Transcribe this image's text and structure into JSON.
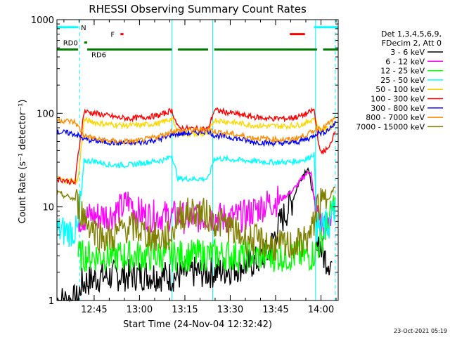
{
  "chart_data": {
    "type": "line",
    "title": "RHESSI Observing Summary Count Rates",
    "xlabel": "Start Time (24-Nov-04 12:32:42)",
    "ylabel": "Count Rate (s⁻¹ detector⁻¹)",
    "yscale": "log",
    "ylim": [
      1,
      1000
    ],
    "xlim_minutes": [
      0,
      93
    ],
    "x_ticks": [
      {
        "label": "12:45",
        "min": 12.3
      },
      {
        "label": "13:00",
        "min": 27.3
      },
      {
        "label": "13:15",
        "min": 42.3
      },
      {
        "label": "13:30",
        "min": 57.3
      },
      {
        "label": "13:45",
        "min": 72.3
      },
      {
        "label": "14:00",
        "min": 87.3
      }
    ],
    "y_ticks": [
      {
        "label": "1",
        "value": 1
      },
      {
        "label": "10",
        "value": 10
      },
      {
        "label": "100",
        "value": 100
      },
      {
        "label": "1000",
        "value": 1000
      }
    ],
    "legend_header": [
      "Det 1,3,4,5,6,9,",
      "FDecim 2, Att 0"
    ],
    "legend_position": "top-right outside",
    "series": [
      {
        "name": "3 - 6 keV",
        "color": "#000000",
        "points": [
          [
            0,
            1
          ],
          [
            7,
            1
          ],
          [
            8,
            1.5
          ],
          [
            14,
            1.8
          ],
          [
            30,
            1.9
          ],
          [
            38,
            1.8
          ],
          [
            45,
            2
          ],
          [
            52,
            2
          ],
          [
            60,
            2.3
          ],
          [
            66,
            2.6
          ],
          [
            70,
            3.2
          ],
          [
            72,
            5
          ],
          [
            74,
            7
          ],
          [
            76,
            9
          ],
          [
            78,
            12
          ],
          [
            80,
            18
          ],
          [
            82,
            24
          ],
          [
            83,
            26
          ],
          [
            84,
            18
          ],
          [
            85,
            12
          ],
          [
            86,
            5
          ],
          [
            88,
            3
          ],
          [
            91,
            2.5
          ]
        ]
      },
      {
        "name": "6 - 12 keV",
        "color": "#ff00ff",
        "points": [
          [
            7,
            7.5
          ],
          [
            12,
            8
          ],
          [
            18,
            8.3
          ],
          [
            22,
            10
          ],
          [
            24,
            12
          ],
          [
            26,
            9
          ],
          [
            30,
            8
          ],
          [
            38,
            8
          ],
          [
            44,
            7.5
          ],
          [
            50,
            8
          ],
          [
            56,
            7.5
          ],
          [
            62,
            8
          ],
          [
            66,
            9.5
          ],
          [
            70,
            11
          ],
          [
            74,
            12
          ],
          [
            78,
            15
          ],
          [
            80,
            18
          ],
          [
            82,
            22
          ],
          [
            84,
            24
          ],
          [
            85,
            12
          ],
          [
            87,
            6.5
          ],
          [
            89,
            6
          ],
          [
            91,
            9
          ]
        ]
      },
      {
        "name": "12 - 25 keV",
        "color": "#00ff00",
        "points": [
          [
            7,
            3
          ],
          [
            12,
            3
          ],
          [
            20,
            3
          ],
          [
            30,
            3
          ],
          [
            42,
            3
          ],
          [
            52,
            3.1
          ],
          [
            60,
            3
          ],
          [
            70,
            3
          ],
          [
            80,
            3
          ],
          [
            84,
            3
          ],
          [
            86,
            3.5
          ],
          [
            88,
            5
          ],
          [
            90,
            7
          ],
          [
            92,
            12
          ]
        ]
      },
      {
        "name": "25 - 50 keV",
        "color": "#00ffff",
        "points": [
          [
            0,
            5.5
          ],
          [
            7,
            5.5
          ],
          [
            9,
            31
          ],
          [
            12,
            31
          ],
          [
            18,
            28
          ],
          [
            24,
            28
          ],
          [
            30,
            30
          ],
          [
            36,
            32
          ],
          [
            38,
            36
          ],
          [
            40,
            20
          ],
          [
            46,
            20
          ],
          [
            50,
            20
          ],
          [
            52,
            33
          ],
          [
            58,
            32
          ],
          [
            64,
            31
          ],
          [
            70,
            30
          ],
          [
            76,
            30
          ],
          [
            80,
            31
          ],
          [
            83,
            33
          ],
          [
            85,
            37
          ],
          [
            86,
            6
          ],
          [
            88,
            6
          ],
          [
            90,
            6.5
          ],
          [
            92,
            10
          ]
        ]
      },
      {
        "name": "50 - 100 keV",
        "color": "#ffd700",
        "points": [
          [
            0,
            20
          ],
          [
            3,
            19
          ],
          [
            6,
            19
          ],
          [
            7,
            20
          ],
          [
            9,
            85
          ],
          [
            14,
            78
          ],
          [
            20,
            75
          ],
          [
            24,
            74
          ],
          [
            28,
            75
          ],
          [
            34,
            78
          ],
          [
            38,
            88
          ],
          [
            40,
            60
          ],
          [
            46,
            60
          ],
          [
            50,
            60
          ],
          [
            52,
            85
          ],
          [
            58,
            80
          ],
          [
            64,
            75
          ],
          [
            70,
            73
          ],
          [
            76,
            73
          ],
          [
            80,
            75
          ],
          [
            83,
            80
          ],
          [
            85,
            90
          ],
          [
            87,
            65
          ],
          [
            90,
            70
          ],
          [
            92,
            78
          ]
        ]
      },
      {
        "name": "100 - 300 keV",
        "color": "#ff0000",
        "points": [
          [
            0,
            20
          ],
          [
            3,
            19
          ],
          [
            6,
            18
          ],
          [
            7,
            36
          ],
          [
            9,
            105
          ],
          [
            14,
            98
          ],
          [
            20,
            90
          ],
          [
            24,
            88
          ],
          [
            28,
            90
          ],
          [
            34,
            95
          ],
          [
            38,
            108
          ],
          [
            40,
            70
          ],
          [
            46,
            68
          ],
          [
            50,
            68
          ],
          [
            52,
            108
          ],
          [
            58,
            100
          ],
          [
            64,
            92
          ],
          [
            70,
            88
          ],
          [
            76,
            88
          ],
          [
            80,
            92
          ],
          [
            83,
            100
          ],
          [
            85,
            110
          ],
          [
            87,
            38
          ],
          [
            90,
            42
          ],
          [
            92,
            68
          ]
        ]
      },
      {
        "name": "300 - 800 keV",
        "color": "#0000ff",
        "points": [
          [
            0,
            63
          ],
          [
            3,
            62
          ],
          [
            6,
            60
          ],
          [
            9,
            53
          ],
          [
            14,
            50
          ],
          [
            20,
            48
          ],
          [
            26,
            48
          ],
          [
            30,
            50
          ],
          [
            36,
            55
          ],
          [
            38,
            60
          ],
          [
            40,
            60
          ],
          [
            46,
            62
          ],
          [
            50,
            65
          ],
          [
            52,
            58
          ],
          [
            58,
            55
          ],
          [
            64,
            50
          ],
          [
            70,
            48
          ],
          [
            76,
            48
          ],
          [
            80,
            50
          ],
          [
            84,
            55
          ],
          [
            86,
            62
          ],
          [
            88,
            62
          ],
          [
            90,
            68
          ],
          [
            92,
            78
          ]
        ]
      },
      {
        "name": "800 - 7000 keV",
        "color": "#ff8c00",
        "points": [
          [
            0,
            85
          ],
          [
            3,
            83
          ],
          [
            6,
            80
          ],
          [
            9,
            58
          ],
          [
            14,
            52
          ],
          [
            20,
            50
          ],
          [
            26,
            50
          ],
          [
            30,
            53
          ],
          [
            36,
            60
          ],
          [
            38,
            65
          ],
          [
            40,
            65
          ],
          [
            46,
            66
          ],
          [
            50,
            68
          ],
          [
            52,
            64
          ],
          [
            58,
            60
          ],
          [
            64,
            55
          ],
          [
            70,
            53
          ],
          [
            76,
            52
          ],
          [
            80,
            55
          ],
          [
            84,
            62
          ],
          [
            86,
            70
          ],
          [
            88,
            70
          ],
          [
            90,
            78
          ],
          [
            92,
            88
          ]
        ]
      },
      {
        "name": "7000 - 15000 keV",
        "color": "#808000",
        "points": [
          [
            0,
            14
          ],
          [
            3,
            13
          ],
          [
            6,
            12
          ],
          [
            8,
            9
          ],
          [
            10,
            7
          ],
          [
            14,
            5
          ],
          [
            18,
            4.5
          ],
          [
            22,
            6
          ],
          [
            26,
            6
          ],
          [
            30,
            5
          ],
          [
            34,
            4.5
          ],
          [
            38,
            5
          ],
          [
            40,
            8
          ],
          [
            46,
            9
          ],
          [
            50,
            8
          ],
          [
            52,
            7
          ],
          [
            56,
            6.5
          ],
          [
            60,
            5
          ],
          [
            64,
            4.5
          ],
          [
            68,
            4.2
          ],
          [
            72,
            3.8
          ],
          [
            76,
            3.8
          ],
          [
            80,
            4
          ],
          [
            84,
            5
          ],
          [
            86,
            10
          ],
          [
            88,
            11
          ],
          [
            90,
            13
          ],
          [
            92,
            16
          ]
        ]
      }
    ],
    "flag_bars": [
      {
        "label": "N",
        "color": "#00ffff",
        "segments": [
          [
            0,
            7
          ],
          [
            85,
            93
          ]
        ],
        "level": 830
      },
      {
        "label": "F",
        "color": "#ff0000",
        "segments": [
          [
            21,
            22
          ],
          [
            77,
            82
          ]
        ],
        "level": 700
      },
      {
        "label": "RD0",
        "color": "#008000",
        "segments": [
          [
            9,
            10
          ]
        ],
        "level": 570
      },
      {
        "label": "RD6",
        "color": "#008000",
        "segments": [
          [
            0,
            7
          ],
          [
            10,
            38
          ],
          [
            40,
            50
          ],
          [
            52,
            86
          ],
          [
            88,
            93
          ]
        ],
        "level": 480
      }
    ],
    "vlines": [
      {
        "min": 7.5,
        "color": "#00ffff",
        "style": "dashed"
      },
      {
        "min": 38,
        "color": "#00ffff",
        "style": "solid"
      },
      {
        "min": 51.5,
        "color": "#00ffff",
        "style": "solid"
      },
      {
        "min": 85.5,
        "color": "#00ffff",
        "style": "solid"
      },
      {
        "min": 92,
        "color": "#00ffff",
        "style": "dashed"
      }
    ]
  },
  "timestamp": "23-Oct-2021 05:19"
}
